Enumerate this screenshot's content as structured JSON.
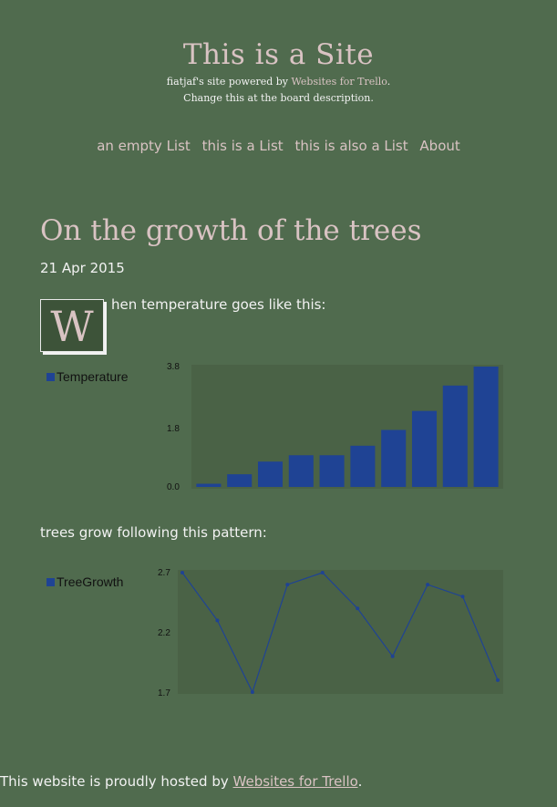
{
  "site": {
    "title": "This is a Site",
    "tagline_prefix": "fiatjaf's site powered by",
    "tagline_link": "Websites for Trello",
    "tagline_suffix": ".",
    "tagline_line2": "Change this at the board description."
  },
  "nav": {
    "items": [
      "an empty List",
      "this is a List",
      "this is also a List",
      "About"
    ]
  },
  "post": {
    "title": "On the growth of the trees",
    "date": "21 Apr 2015",
    "dropcap": "W",
    "para1": "hen temperature goes like this:",
    "para2": "trees grow following this pattern:"
  },
  "colors": {
    "background": "#506b4e",
    "accent_text": "#d9c3c3",
    "plot_bg": "#4a6246",
    "series": "#1f4394"
  },
  "chart_data": [
    {
      "type": "bar",
      "series": [
        {
          "name": "Temperature",
          "values": [
            0.1,
            0.4,
            0.8,
            1.0,
            1.0,
            1.3,
            1.8,
            2.4,
            3.2,
            3.8
          ]
        }
      ],
      "yticks": [
        "3.8",
        "1.8",
        "0.0"
      ],
      "ylim": [
        0,
        3.8
      ],
      "legend": "left"
    },
    {
      "type": "line",
      "series": [
        {
          "name": "TreeGrowth",
          "values": [
            2.7,
            2.3,
            1.7,
            2.6,
            2.7,
            2.4,
            2.0,
            2.6,
            2.5,
            1.8
          ]
        }
      ],
      "yticks": [
        "2.7",
        "2.2",
        "1.7"
      ],
      "ylim": [
        1.7,
        2.7
      ],
      "legend": "left"
    }
  ],
  "footer": {
    "prefix": "This website is proudly hosted by",
    "link": "Websites for Trello",
    "suffix": "."
  }
}
